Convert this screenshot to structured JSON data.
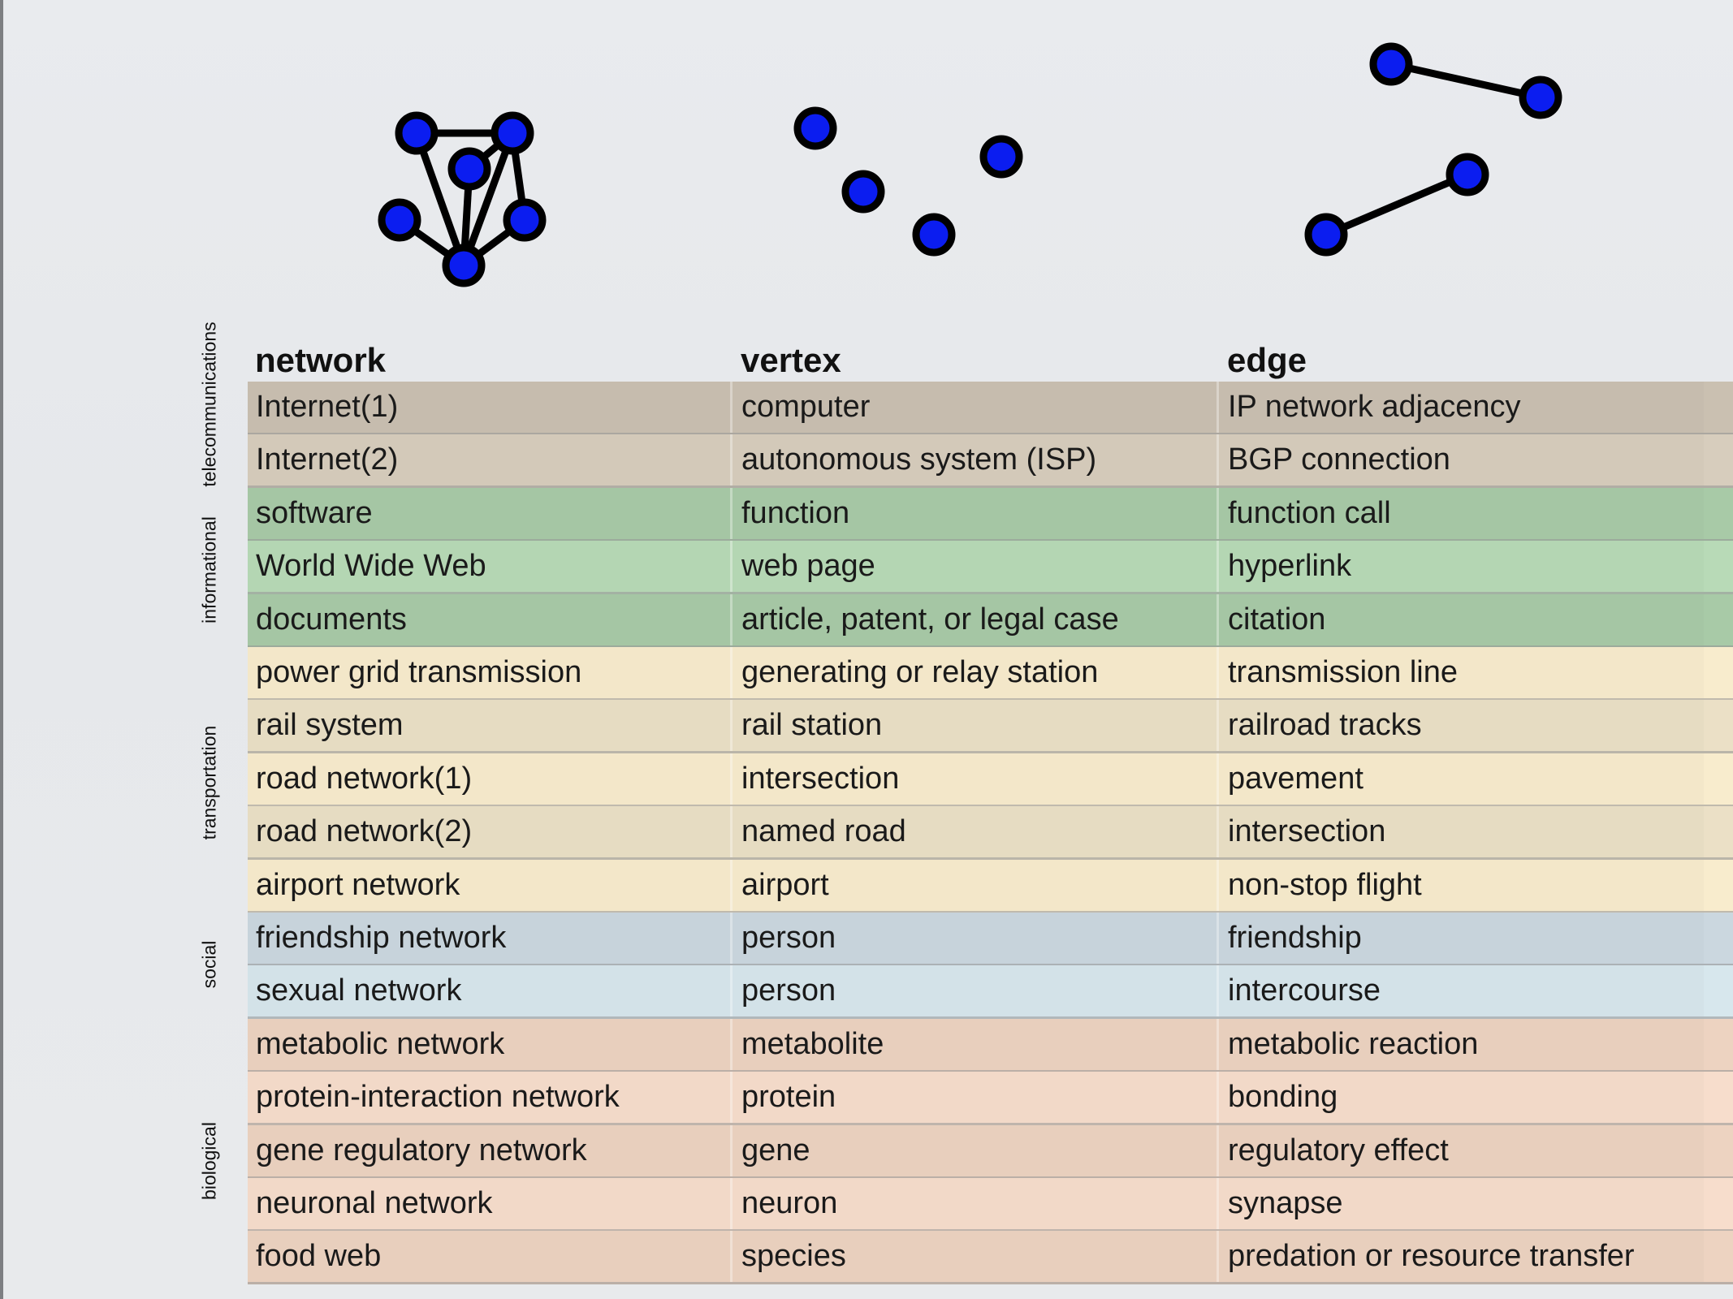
{
  "headers": {
    "network": "network",
    "vertex": "vertex",
    "edge": "edge"
  },
  "categories": [
    {
      "label": "telecommunications"
    },
    {
      "label": "informational"
    },
    {
      "label": "transportation"
    },
    {
      "label": "social"
    },
    {
      "label": "biological"
    }
  ],
  "colors": {
    "telecommunications": [
      "#c6bcae",
      "#d3c9b9"
    ],
    "informational": [
      "#a5c6a4",
      "#b4d6b3"
    ],
    "transportation": [
      "#f3e7c9",
      "#e6dcc2"
    ],
    "social": [
      "#c7d3db",
      "#d3e2e8"
    ],
    "biological": [
      "#e8cfbd",
      "#f2d9c8"
    ],
    "vertex_fill": "#0b1df0",
    "vertex_stroke": "#000000"
  },
  "rows": [
    {
      "category": "telecommunications",
      "network": "Internet(1)",
      "vertex": "computer",
      "edge": "IP network adjacency"
    },
    {
      "category": "telecommunications",
      "network": "Internet(2)",
      "vertex": "autonomous system (ISP)",
      "edge": "BGP connection"
    },
    {
      "category": "informational",
      "network": "software",
      "vertex": "function",
      "edge": "function call"
    },
    {
      "category": "informational",
      "network": "World Wide Web",
      "vertex": "web page",
      "edge": "hyperlink"
    },
    {
      "category": "informational",
      "network": "documents",
      "vertex": "article, patent, or legal case",
      "edge": "citation"
    },
    {
      "category": "transportation",
      "network": "power grid transmission",
      "vertex": "generating or relay station",
      "edge": "transmission line"
    },
    {
      "category": "transportation",
      "network": "rail system",
      "vertex": "rail station",
      "edge": "railroad tracks"
    },
    {
      "category": "transportation",
      "network": "road network(1)",
      "vertex": "intersection",
      "edge": "pavement"
    },
    {
      "category": "transportation",
      "network": "road network(2)",
      "vertex": "named road",
      "edge": "intersection"
    },
    {
      "category": "transportation",
      "network": "airport network",
      "vertex": "airport",
      "edge": "non-stop flight"
    },
    {
      "category": "social",
      "network": "friendship network",
      "vertex": "person",
      "edge": "friendship"
    },
    {
      "category": "social",
      "network": "sexual network",
      "vertex": "person",
      "edge": "intercourse"
    },
    {
      "category": "biological",
      "network": "metabolic network",
      "vertex": "metabolite",
      "edge": "metabolic reaction"
    },
    {
      "category": "biological",
      "network": "protein-interaction network",
      "vertex": "protein",
      "edge": "bonding"
    },
    {
      "category": "biological",
      "network": "gene regulatory network",
      "vertex": "gene",
      "edge": "regulatory effect"
    },
    {
      "category": "biological",
      "network": "neuronal network",
      "vertex": "neuron",
      "edge": "synapse"
    },
    {
      "category": "biological",
      "network": "food web",
      "vertex": "species",
      "edge": "predation or resource transfer"
    }
  ]
}
